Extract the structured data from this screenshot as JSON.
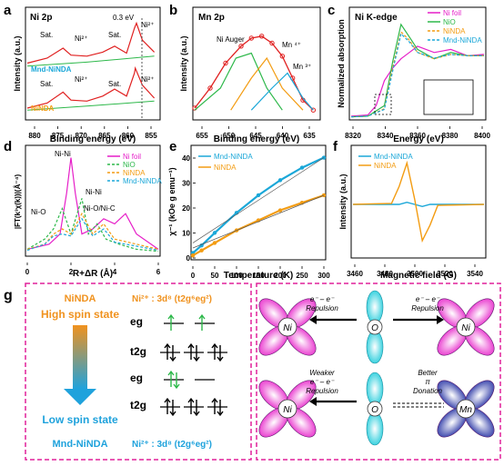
{
  "colors": {
    "magenta": "#e61ec8",
    "green": "#2db84a",
    "orange": "#f39c12",
    "cyan": "#1aa7d8",
    "red": "#e02020",
    "dashed_border": "#e0219a",
    "high_spin": "#f0921e",
    "low_spin": "#1fa2dc",
    "navy": "#1d2aa0"
  },
  "panels": {
    "a": {
      "letter": "a",
      "title": "Ni 2p",
      "xlabel": "Binding energy (eV)",
      "ylabel": "Intensity (a.u.)",
      "ticks": [
        "880",
        "875",
        "870",
        "865",
        "860",
        "855"
      ],
      "label_mnd": "Mnd-NiNDA",
      "label_ninda": "NiNDA",
      "peak_shift": "0.3 eV",
      "ni2_label": "Ni²⁺",
      "sat_label": "Sat."
    },
    "b": {
      "letter": "b",
      "title": "Mn 2p",
      "xlabel": "Binding energy (eV)",
      "ylabel": "Intensity (a.u.)",
      "ticks": [
        "655",
        "650",
        "645",
        "640",
        "635"
      ],
      "auger": "Ni Auger",
      "mn4": "Mn ⁴⁺",
      "mn3": "Mn ³⁺"
    },
    "c": {
      "letter": "c",
      "title": "Ni K-edge",
      "xlabel": "Energy (eV)",
      "ylabel": "Normalized absorption",
      "ticks": [
        "8320",
        "8340",
        "8360",
        "8380",
        "8400"
      ],
      "legend": [
        "Ni foil",
        "NiO",
        "NiNDA",
        "Mnd-NiNDA"
      ]
    },
    "d": {
      "letter": "d",
      "xlabel": "R+ΔR (Å)",
      "ylabel": "|FT(k³χ(k))|(Å⁻⁴)",
      "ticks": [
        "0",
        "2",
        "4",
        "6"
      ],
      "legend": [
        "Ni foil",
        "NiO",
        "NiNDA",
        "Mnd-NiNDA"
      ],
      "ann_nini_top": "Ni-Ni",
      "ann_nini_mid": "Ni-Ni",
      "ann_nio": "Ni-O",
      "ann_nioc": "Ni-O/Ni-C"
    },
    "e": {
      "letter": "e",
      "xlabel": "Temperature (K)",
      "ylabel": "χ⁻¹ (kOe g emu⁻¹)",
      "xticks": [
        "0",
        "50",
        "100",
        "150",
        "200",
        "250",
        "300"
      ],
      "yticks": [
        "0",
        "10",
        "20",
        "30",
        "40"
      ],
      "legend": [
        "Mnd-NiNDA",
        "NiNDA"
      ]
    },
    "f": {
      "letter": "f",
      "xlabel": "Magnetic field (G)",
      "ylabel": "Intensity (a.u.)",
      "ticks": [
        "3460",
        "3480",
        "3500",
        "3520",
        "3540"
      ],
      "legend": [
        "Mnd-NiNDA",
        "NiNDA"
      ]
    },
    "g": {
      "letter": "g",
      "ninda": "NiNDA",
      "high_spin": "High spin state",
      "low_spin": "Low spin state",
      "mnd": "Mnd-NiNDA",
      "config_top": "Ni²⁺ : 3d⁸ (t2g⁶eg²)",
      "config_bottom": "Ni²⁺ : 3d⁸ (t2g⁶eg²)",
      "eg": "eg",
      "t2g": "t2g",
      "repulsion": "e⁻ – e⁻",
      "repulsion2": "Repulsion",
      "weaker1": "Weaker",
      "weaker2": "e⁻ – e⁻",
      "weaker3": "Repulsion",
      "better1": "Better",
      "better2": "π",
      "better3": "Donation",
      "ni": "Ni",
      "o": "O",
      "mn": "Mn"
    }
  },
  "chart_data": [
    {
      "type": "line",
      "panel": "a",
      "title": "Ni 2p",
      "xlabel": "Binding energy (eV)",
      "ylabel": "Intensity (a.u.)",
      "xlim": [
        883,
        850
      ],
      "ylim": [
        0,
        1
      ],
      "series": [
        {
          "name": "Mnd-NiNDA",
          "x": [
            883,
            878,
            874,
            872,
            868,
            864,
            861,
            858,
            856,
            855.5,
            854,
            851
          ],
          "y": [
            0.55,
            0.6,
            0.7,
            0.63,
            0.62,
            0.66,
            0.72,
            0.65,
            0.9,
            0.95,
            0.78,
            0.66
          ]
        },
        {
          "name": "NiNDA",
          "x": [
            883,
            878,
            874,
            872,
            868,
            864,
            861,
            858,
            856,
            855.8,
            854,
            851
          ],
          "y": [
            0.1,
            0.15,
            0.26,
            0.18,
            0.17,
            0.22,
            0.29,
            0.22,
            0.45,
            0.5,
            0.33,
            0.2
          ]
        }
      ]
    },
    {
      "type": "line",
      "panel": "b",
      "title": "Mn 2p",
      "xlabel": "Binding energy (eV)",
      "ylabel": "Intensity (a.u.)",
      "xlim": [
        657,
        633
      ],
      "ylim": [
        0,
        1
      ],
      "series": [
        {
          "x": [
            657,
            654,
            651,
            648,
            646,
            644,
            642,
            640,
            638,
            636,
            634
          ],
          "y": [
            0.1,
            0.3,
            0.55,
            0.72,
            0.8,
            0.82,
            0.75,
            0.62,
            0.4,
            0.18,
            0.08
          ]
        }
      ]
    },
    {
      "type": "line",
      "panel": "c",
      "title": "Ni K-edge",
      "xlabel": "Energy (eV)",
      "ylabel": "Normalized absorption",
      "xlim": [
        8320,
        8400
      ],
      "ylim": [
        0,
        1.6
      ],
      "series": [
        {
          "name": "Ni foil",
          "x": [
            8320,
            8330,
            8335,
            8340,
            8345,
            8350,
            8355,
            8360,
            8370,
            8380,
            8390,
            8400
          ],
          "y": [
            0.03,
            0.05,
            0.2,
            0.6,
            0.8,
            0.95,
            1.05,
            1.15,
            1.05,
            1.1,
            1.0,
            1.02
          ]
        },
        {
          "name": "NiO",
          "x": [
            8320,
            8330,
            8340,
            8345,
            8350,
            8355,
            8360,
            8370,
            8380,
            8390,
            8400
          ],
          "y": [
            0.02,
            0.03,
            0.2,
            0.9,
            1.5,
            1.3,
            1.1,
            0.95,
            1.05,
            1.0,
            1.0
          ]
        },
        {
          "name": "NiNDA",
          "x": [
            8320,
            8330,
            8340,
            8345,
            8350,
            8355,
            8360,
            8370,
            8380,
            8390,
            8400
          ],
          "y": [
            0.02,
            0.03,
            0.15,
            0.8,
            1.38,
            1.25,
            1.05,
            0.95,
            1.02,
            1.0,
            1.0
          ]
        },
        {
          "name": "Mnd-NiNDA",
          "x": [
            8320,
            8330,
            8340,
            8345,
            8350,
            8355,
            8360,
            8370,
            8380,
            8390,
            8400
          ],
          "y": [
            0.02,
            0.03,
            0.14,
            0.75,
            1.35,
            1.22,
            1.05,
            0.96,
            1.02,
            1.0,
            1.0
          ]
        }
      ]
    },
    {
      "type": "line",
      "panel": "d",
      "xlabel": "R+ΔR (Å)",
      "ylabel": "|FT(k³χ(k))|(Å⁻⁴)",
      "xlim": [
        0,
        6
      ],
      "ylim": [
        0,
        1
      ],
      "series": [
        {
          "name": "Ni foil",
          "x": [
            0,
            1,
            1.5,
            1.8,
            2.0,
            2.2,
            2.5,
            3.0,
            3.5,
            4.0,
            4.5,
            5,
            6
          ],
          "y": [
            0.05,
            0.1,
            0.2,
            0.6,
            0.95,
            0.6,
            0.2,
            0.25,
            0.35,
            0.3,
            0.4,
            0.2,
            0.05
          ]
        },
        {
          "name": "NiO",
          "x": [
            0,
            0.8,
            1.2,
            1.6,
            2.0,
            2.5,
            2.8,
            3.2,
            3.6,
            4.2,
            5,
            6
          ],
          "y": [
            0.05,
            0.15,
            0.25,
            0.45,
            0.2,
            0.55,
            0.2,
            0.3,
            0.15,
            0.1,
            0.05,
            0.03
          ]
        },
        {
          "name": "NiNDA",
          "x": [
            0,
            0.8,
            1.2,
            1.6,
            2.0,
            2.5,
            3.0,
            3.5,
            4.0,
            5,
            6
          ],
          "y": [
            0.05,
            0.1,
            0.2,
            0.25,
            0.2,
            0.4,
            0.2,
            0.3,
            0.15,
            0.1,
            0.05
          ]
        },
        {
          "name": "Mnd-NiNDA",
          "x": [
            0,
            0.8,
            1.2,
            1.6,
            2.0,
            2.5,
            3.0,
            3.5,
            4.0,
            5,
            6
          ],
          "y": [
            0.04,
            0.1,
            0.18,
            0.2,
            0.18,
            0.35,
            0.18,
            0.25,
            0.12,
            0.08,
            0.04
          ]
        }
      ]
    },
    {
      "type": "line",
      "panel": "e",
      "xlabel": "Temperature (K)",
      "ylabel": "χ⁻¹ (kOe g emu⁻¹)",
      "xlim": [
        0,
        300
      ],
      "ylim": [
        0,
        42
      ],
      "series": [
        {
          "name": "Mnd-NiNDA",
          "x": [
            0,
            20,
            50,
            100,
            150,
            200,
            250,
            300
          ],
          "y": [
            2,
            5,
            10,
            18,
            25,
            31,
            36,
            40
          ]
        },
        {
          "name": "NiNDA",
          "x": [
            0,
            20,
            50,
            100,
            150,
            200,
            250,
            300
          ],
          "y": [
            1,
            3,
            6,
            11,
            15,
            19,
            22,
            25
          ]
        }
      ]
    },
    {
      "type": "line",
      "panel": "f",
      "xlabel": "Magnetic field (G)",
      "ylabel": "Intensity (a.u.)",
      "xlim": [
        3460,
        3545
      ],
      "ylim": [
        -1,
        1
      ],
      "series": [
        {
          "name": "Mnd-NiNDA",
          "x": [
            3460,
            3490,
            3495,
            3500,
            3505,
            3510,
            3520,
            3545
          ],
          "y": [
            0,
            0,
            0.04,
            0,
            -0.04,
            0,
            0,
            0
          ]
        },
        {
          "name": "NiNDA",
          "x": [
            3460,
            3485,
            3490,
            3495,
            3500,
            3505,
            3510,
            3515,
            3545
          ],
          "y": [
            0,
            0.02,
            0.35,
            0.8,
            0.1,
            -0.7,
            -0.4,
            -0.02,
            0
          ]
        }
      ]
    }
  ]
}
